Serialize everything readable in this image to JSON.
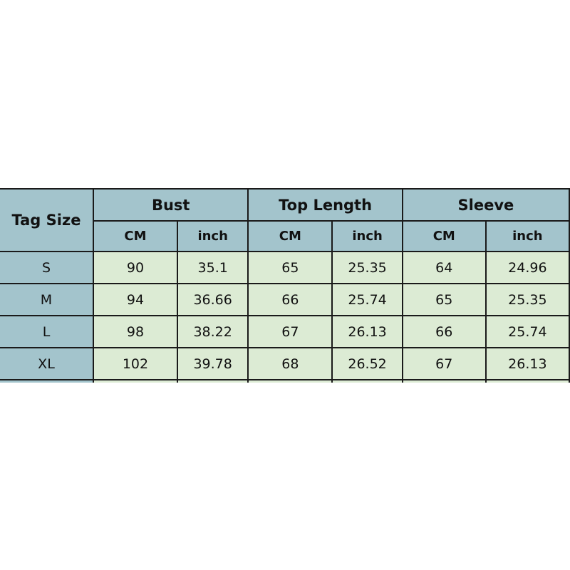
{
  "table": {
    "corner": "Tag Size",
    "groups": [
      "Bust",
      "Top Length",
      "Sleeve"
    ],
    "units": [
      "CM",
      "inch",
      "CM",
      "inch",
      "CM",
      "inch"
    ],
    "rows": [
      {
        "size": "S",
        "values": [
          "90",
          "35.1",
          "65",
          "25.35",
          "64",
          "24.96"
        ]
      },
      {
        "size": "M",
        "values": [
          "94",
          "36.66",
          "66",
          "25.74",
          "65",
          "25.35"
        ]
      },
      {
        "size": "L",
        "values": [
          "98",
          "38.22",
          "67",
          "26.13",
          "66",
          "25.74"
        ]
      },
      {
        "size": "XL",
        "values": [
          "102",
          "39.78",
          "68",
          "26.52",
          "67",
          "26.13"
        ]
      }
    ]
  },
  "colors": {
    "header": "#a3c4cc",
    "body": "#dcebd4",
    "border": "#1a1a1a"
  }
}
